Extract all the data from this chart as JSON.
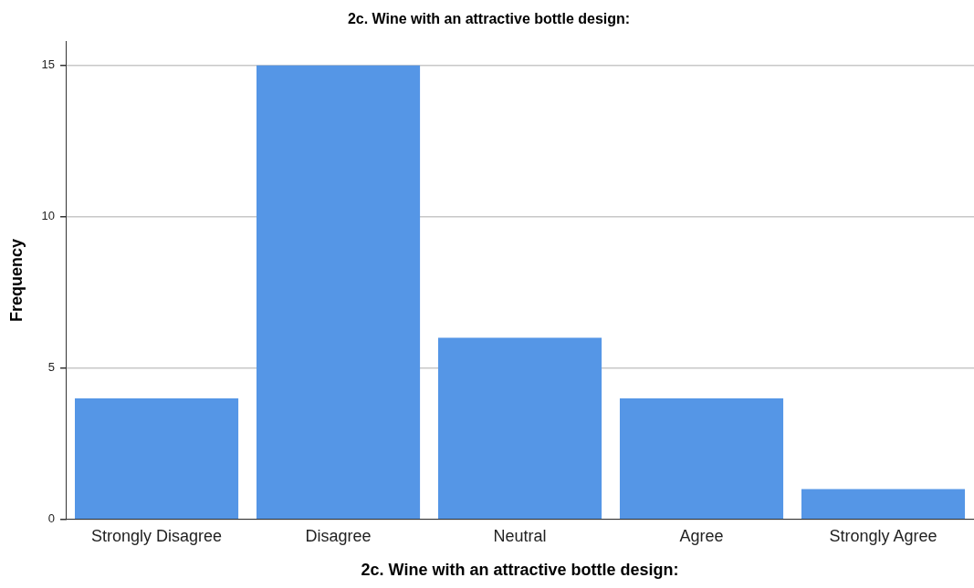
{
  "chart_data": {
    "type": "bar",
    "title": "2c. Wine with an attractive bottle design:",
    "xlabel": "2c. Wine with an attractive bottle design:",
    "ylabel": "Frequency",
    "categories": [
      "Strongly Disagree",
      "Disagree",
      "Neutral",
      "Agree",
      "Strongly Agree"
    ],
    "values": [
      4,
      15,
      6,
      4,
      1
    ],
    "color": "#5596e6",
    "ylim": [
      0,
      15.8
    ],
    "yticks": [
      0,
      5,
      10,
      15
    ],
    "grid": "y",
    "legend": false
  }
}
